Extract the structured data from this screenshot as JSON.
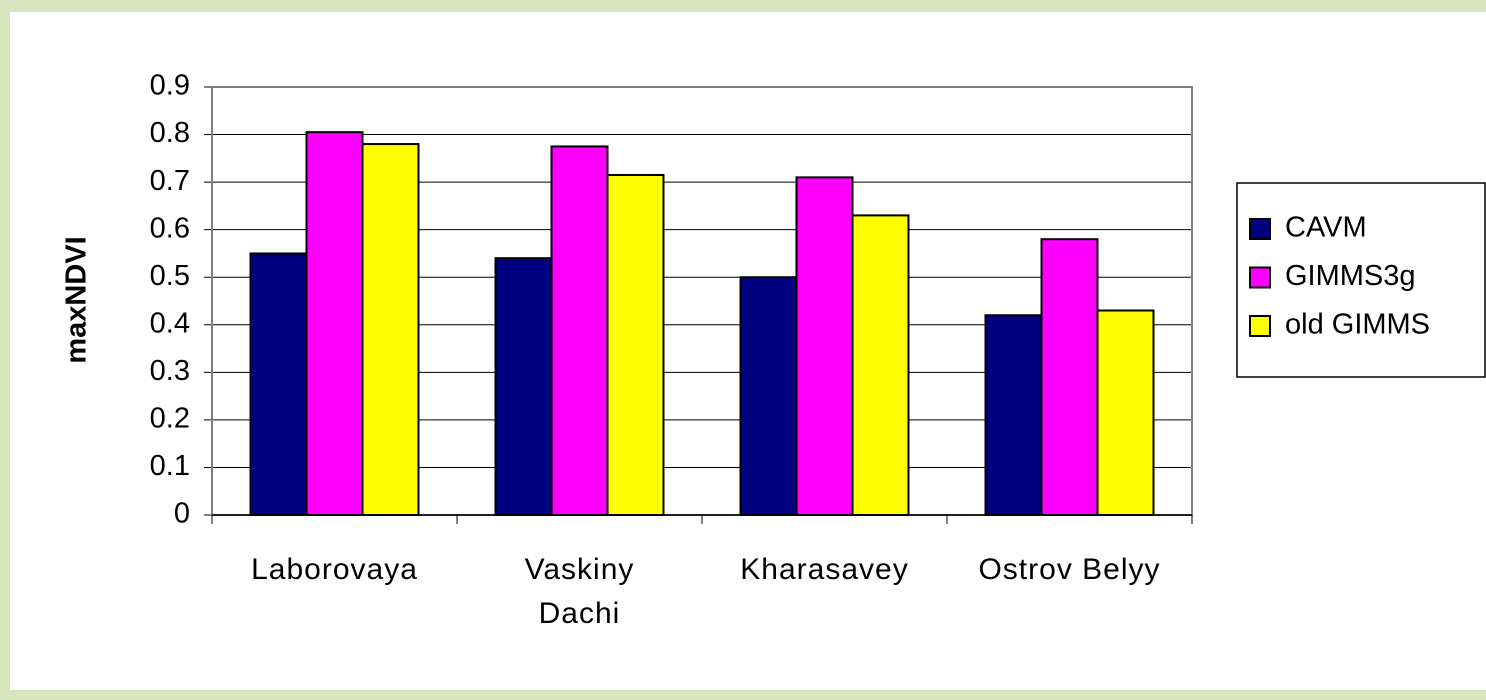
{
  "chart_data": {
    "type": "bar",
    "y_label": "maxNDVI",
    "categories": [
      "Laborovaya",
      "Vaskiny Dachi",
      "Kharasavey",
      "Ostrov Belyy"
    ],
    "series": [
      {
        "name": "CAVM",
        "color": "#000080",
        "values": [
          0.55,
          0.54,
          0.5,
          0.42
        ]
      },
      {
        "name": "GIMMS3g",
        "color": "#ff00ff",
        "values": [
          0.805,
          0.775,
          0.71,
          0.58
        ]
      },
      {
        "name": "old GIMMS",
        "color": "#ffff00",
        "values": [
          0.78,
          0.715,
          0.63,
          0.43
        ]
      }
    ],
    "ylim": [
      0,
      0.9
    ],
    "yticks": [
      0,
      0.1,
      0.2,
      0.3,
      0.4,
      0.5,
      0.6,
      0.7,
      0.8,
      0.9
    ],
    "grid": true
  }
}
